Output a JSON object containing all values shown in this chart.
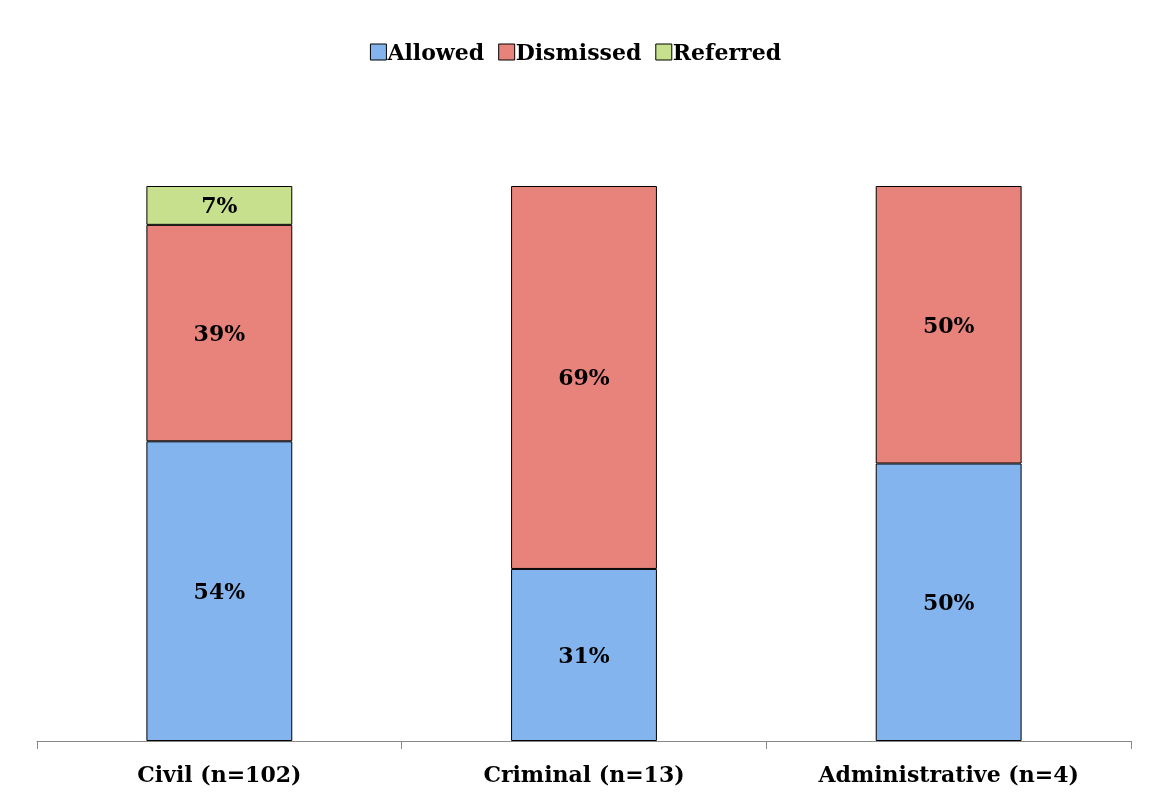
{
  "chart_data": {
    "type": "bar",
    "stacked": true,
    "legend": "top",
    "grid": false,
    "tick_labels": "x",
    "categories": [
      "Civil (n=102)",
      "Criminal (n=13)",
      "Administrative (n=4)"
    ],
    "series": [
      {
        "name": "Allowed",
        "color": "#84b4ee",
        "values": [
          54,
          31,
          50
        ],
        "value_labels": [
          "54%",
          "31%",
          "50%"
        ]
      },
      {
        "name": "Dismissed",
        "color": "#e8837b",
        "values": [
          39,
          69,
          50
        ],
        "value_labels": [
          "39%",
          "69%",
          "50%"
        ]
      },
      {
        "name": "Referred",
        "color": "#c6e08e",
        "values": [
          7,
          null,
          null
        ],
        "value_labels": [
          "7%",
          null,
          null
        ]
      }
    ]
  }
}
